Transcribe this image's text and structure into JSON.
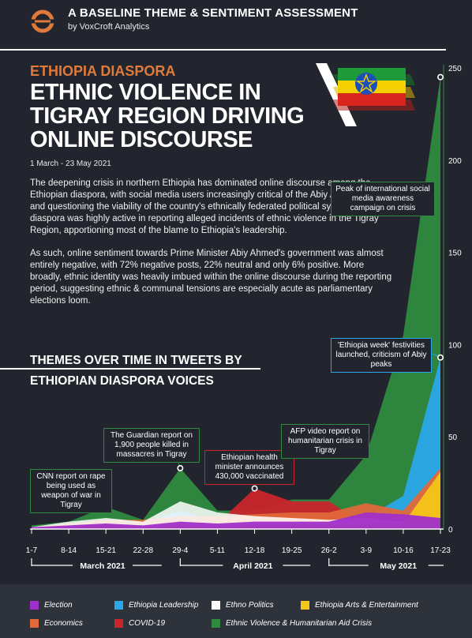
{
  "header": {
    "title": "A BASELINE THEME & SENTIMENT ASSESSMENT",
    "subtitle": "by VoxCroft Analytics"
  },
  "article": {
    "kicker": "ETHIOPIA DIASPORA",
    "headline": "ETHNIC VIOLENCE IN\nTIGRAY REGION DRIVING\nONLINE DISCOURSE",
    "date_range": "1 March - 23 May 2021",
    "paragraphs": [
      "The deepening crisis in northern Ethiopia has dominated online discourse among the Ethiopian diaspora, with social media users increasingly critical of the Abiy Administration and questioning the viability of the country's ethnically federated political system. The diaspora was highly active in reporting alleged incidents of ethnic violence in the Tigray Region, apportioning most of the blame to Ethiopia's leadership.",
      "As such, online sentiment towards Prime Minister Abiy Ahmed's government was almost entirely negative, with 72% negative posts, 22% neutral and only 6% positive. More broadly, ethnic identity was heavily imbued within the online discourse during the reporting period, suggesting ethnic & communal tensions are especially acute as parliamentary elections loom."
    ],
    "section_title_1": "THEMES OVER TIME IN TWEETS BY",
    "section_title_2": "ETHIOPIAN DIASPORA VOICES"
  },
  "colors": {
    "background": "#22252d",
    "accent_orange": "#e07a3a",
    "election": "#a12fc9",
    "ethiopia_leadership": "#2aa7e8",
    "ethno_politics": "#ffffff",
    "arts_entertainment": "#f5c518",
    "economics": "#e0683a",
    "covid19": "#c9252c",
    "ethnic_violence": "#2f8a3f"
  },
  "chart_data": {
    "type": "area",
    "stacked": false,
    "title": "THEMES OVER TIME IN TWEETS BY ETHIOPIAN DIASPORA VOICES",
    "categories": [
      "1-7",
      "8-14",
      "15-21",
      "22-28",
      "29-4",
      "5-11",
      "12-18",
      "19-25",
      "26-2",
      "3-9",
      "10-16",
      "17-23"
    ],
    "month_labels": [
      "March 2021",
      "April 2021",
      "May 2021"
    ],
    "ylim": [
      0,
      250
    ],
    "yticks": [
      0,
      50,
      100,
      150,
      200,
      250
    ],
    "axis_side": "right",
    "series": [
      {
        "name": "Ethnic Violence & Humanitarian Aid Crisis",
        "color_key": "ethnic_violence",
        "values": [
          2,
          4,
          12,
          5,
          33,
          10,
          10,
          16,
          16,
          40,
          105,
          245
        ]
      },
      {
        "name": "Ethiopia Leadership",
        "color_key": "ethiopia_leadership",
        "values": [
          1,
          2,
          3,
          3,
          10,
          4,
          5,
          5,
          5,
          6,
          18,
          93
        ]
      },
      {
        "name": "COVID-19",
        "color_key": "covid19",
        "values": [
          0,
          1,
          2,
          2,
          4,
          3,
          22,
          15,
          15,
          2,
          2,
          3
        ]
      },
      {
        "name": "Economics",
        "color_key": "economics",
        "values": [
          1,
          3,
          5,
          5,
          7,
          7,
          8,
          9,
          9,
          14,
          10,
          33
        ]
      },
      {
        "name": "Ethno Politics",
        "color_key": "ethno_politics",
        "values": [
          1,
          4,
          6,
          4,
          15,
          9,
          7,
          6,
          5,
          6,
          4,
          5
        ]
      },
      {
        "name": "Ethiopia Arts & Entertainment",
        "color_key": "arts_entertainment",
        "values": [
          0,
          1,
          2,
          1,
          2,
          1,
          2,
          2,
          2,
          3,
          3,
          31
        ]
      },
      {
        "name": "Election",
        "color_key": "election",
        "values": [
          1,
          2,
          3,
          2,
          4,
          3,
          4,
          4,
          4,
          9,
          8,
          6
        ]
      }
    ],
    "annotations": [
      {
        "label": "CNN report on rape being used as weapon of war in Tigray",
        "category": "15-21",
        "value": 12,
        "color_key": "ethnic_violence"
      },
      {
        "label": "The Guardian report on 1,900 people killed in massacres in Tigray",
        "category": "29-4",
        "value": 33,
        "color_key": "ethnic_violence"
      },
      {
        "label": "Ethiopian health minister announces 430,000 vaccinated",
        "category": "12-18",
        "value": 22,
        "color_key": "covid19"
      },
      {
        "label": "AFP video report on humanitarian crisis in Tigray",
        "category": "3-9",
        "value": 40,
        "color_key": "ethnic_violence"
      },
      {
        "label": "'Ethiopia week' festivities launched, criticism of Abiy peaks",
        "category": "17-23",
        "value": 93,
        "color_key": "ethiopia_leadership"
      },
      {
        "label": "Peak of international social media awareness campaign on crisis",
        "category": "17-23",
        "value": 245,
        "color_key": "ethnic_violence"
      }
    ]
  },
  "legend": {
    "items": [
      {
        "label": "Election",
        "color_key": "election"
      },
      {
        "label": "Ethiopia Leadership",
        "color_key": "ethiopia_leadership"
      },
      {
        "label": "Ethno Politics",
        "color_key": "ethno_politics"
      },
      {
        "label": "Ethiopia Arts & Entertainment",
        "color_key": "arts_entertainment"
      },
      {
        "label": "Economics",
        "color_key": "economics"
      },
      {
        "label": "COVID-19",
        "color_key": "covid19"
      },
      {
        "label": "Ethnic Violence & Humanitarian Aid Crisis",
        "color_key": "ethnic_violence"
      }
    ]
  }
}
